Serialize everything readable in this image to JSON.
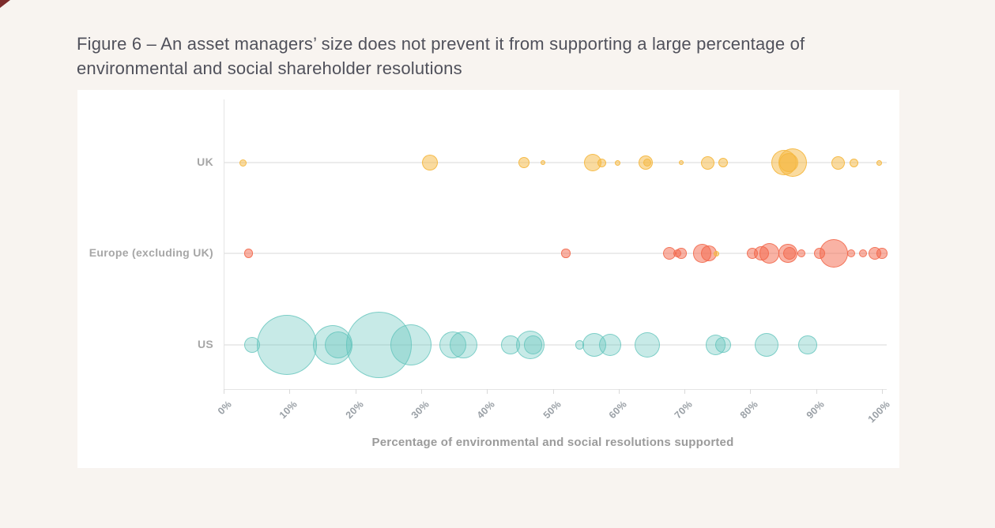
{
  "page": {
    "background": "#f8f4f0",
    "panel_background": "#ffffff",
    "corner_mark_color": "#7d2b2b"
  },
  "title": {
    "text": "Figure 6 – An asset managers’ size does not prevent it from supporting a large percentage of environmental and social shareholder resolutions"
  },
  "chart_data": {
    "type": "scatter",
    "subtype": "bubble-strip",
    "title": "Figure 6 – An asset managers’ size does not prevent it from supporting a large percentage of environmental and social shareholder resolutions",
    "xlabel": "Percentage of environmental and social resolutions supported",
    "xlim": [
      0,
      100
    ],
    "x_ticks": [
      "0%",
      "10%",
      "20%",
      "30%",
      "40%",
      "50%",
      "60%",
      "70%",
      "80%",
      "90%",
      "100%"
    ],
    "grid": "horizontal-category-lines",
    "legend_position": "none",
    "rows": [
      {
        "label": "UK",
        "color": "#f5b840",
        "points": [
          {
            "x": 3.0,
            "r": 4.5
          },
          {
            "x": 31.3,
            "r": 10
          },
          {
            "x": 45.6,
            "r": 7
          },
          {
            "x": 48.5,
            "r": 3
          },
          {
            "x": 56.1,
            "r": 11
          },
          {
            "x": 57.5,
            "r": 5.5
          },
          {
            "x": 59.9,
            "r": 3.5
          },
          {
            "x": 64.1,
            "r": 9
          },
          {
            "x": 64.3,
            "r": 5
          },
          {
            "x": 69.5,
            "r": 3
          },
          {
            "x": 73.5,
            "r": 8.5
          },
          {
            "x": 75.9,
            "r": 6
          },
          {
            "x": 85.1,
            "r": 16
          },
          {
            "x": 86.4,
            "r": 18
          },
          {
            "x": 85.8,
            "r": 12
          },
          {
            "x": 93.3,
            "r": 8.5
          },
          {
            "x": 95.7,
            "r": 5.5
          },
          {
            "x": 99.6,
            "r": 3.5
          }
        ]
      },
      {
        "label": "Europe (excluding UK)",
        "color": "#f3664a",
        "points": [
          {
            "x": 3.8,
            "r": 5.7
          },
          {
            "x": 52.0,
            "r": 5.7
          },
          {
            "x": 67.7,
            "r": 8.3
          },
          {
            "x": 68.9,
            "r": 5
          },
          {
            "x": 69.5,
            "r": 6.7
          },
          {
            "x": 72.7,
            "r": 11.7
          },
          {
            "x": 73.7,
            "r": 10
          },
          {
            "x": 80.3,
            "r": 7.3
          },
          {
            "x": 81.7,
            "r": 9.3
          },
          {
            "x": 82.9,
            "r": 12.7
          },
          {
            "x": 85.7,
            "r": 11.7
          },
          {
            "x": 86.0,
            "r": 8
          },
          {
            "x": 87.7,
            "r": 5
          },
          {
            "x": 90.5,
            "r": 7.3
          },
          {
            "x": 92.7,
            "r": 18.3
          },
          {
            "x": 95.3,
            "r": 5
          },
          {
            "x": 97.1,
            "r": 5
          },
          {
            "x": 98.9,
            "r": 8.3
          },
          {
            "x": 100,
            "r": 6.7
          }
        ]
      },
      {
        "label": "US",
        "color": "#5fc3bb",
        "points": [
          {
            "x": 4.3,
            "r": 10
          },
          {
            "x": 9.6,
            "r": 38
          },
          {
            "x": 16.6,
            "r": 25
          },
          {
            "x": 17.4,
            "r": 17.3
          },
          {
            "x": 23.6,
            "r": 41.7
          },
          {
            "x": 28.4,
            "r": 26
          },
          {
            "x": 34.8,
            "r": 17.3
          },
          {
            "x": 36.4,
            "r": 17.3
          },
          {
            "x": 43.6,
            "r": 11.7
          },
          {
            "x": 46.6,
            "r": 18.3
          },
          {
            "x": 47.0,
            "r": 11.7
          },
          {
            "x": 54.1,
            "r": 5.7
          },
          {
            "x": 56.3,
            "r": 15
          },
          {
            "x": 58.7,
            "r": 14.3
          },
          {
            "x": 64.3,
            "r": 16
          },
          {
            "x": 74.7,
            "r": 12.7
          },
          {
            "x": 75.9,
            "r": 10
          },
          {
            "x": 82.5,
            "r": 15
          },
          {
            "x": 88.7,
            "r": 11.7
          }
        ]
      }
    ],
    "stray_points": [
      {
        "row_index": 1,
        "x": 74.9,
        "r": 3.5,
        "color": "#f5b840"
      }
    ]
  }
}
